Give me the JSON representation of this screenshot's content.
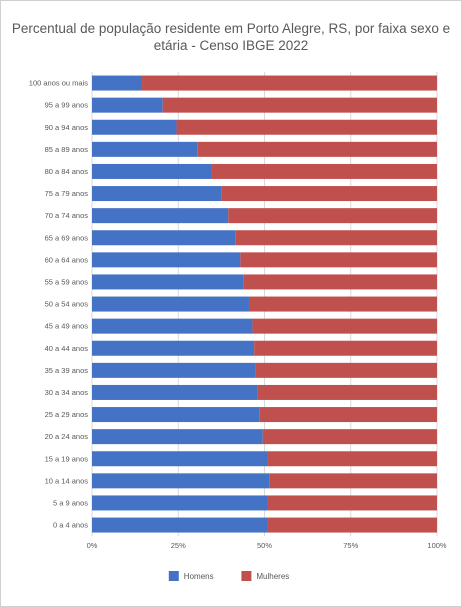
{
  "chart_data": {
    "type": "bar",
    "orientation": "horizontal",
    "stacked": "percent",
    "title_lines": [
      "Percentual de população residente em Porto Alegre, RS, por faixa sexo e",
      "etária - Censo IBGE 2022"
    ],
    "categories": [
      "100 anos ou mais",
      "95 a 99 anos",
      "90 a 94 anos",
      "85 a 89 anos",
      "80 a 84 anos",
      "75 a 79 anos",
      "70 a 74 anos",
      "65 a 69 anos",
      "60 a 64 anos",
      "55 a 59 anos",
      "50 a 54 anos",
      "45 a 49 anos",
      "40 a 44 anos",
      "35 a 39 anos",
      "30 a 34 anos",
      "25 a 29 anos",
      "20 a 24 anos",
      "15 a 19 anos",
      "10 a 14 anos",
      "5 a 9 anos",
      "0 a 4 anos"
    ],
    "series": [
      {
        "name": "Homens",
        "color": "#4472c4",
        "values": [
          14.5,
          20.5,
          24.5,
          30.5,
          34.5,
          37.5,
          39.5,
          41.5,
          43.0,
          44.0,
          45.5,
          46.5,
          47.0,
          47.5,
          48.0,
          48.5,
          49.5,
          51.0,
          51.5,
          51.0,
          51.0
        ]
      },
      {
        "name": "Mulheres",
        "color": "#c0504d",
        "values": [
          85.5,
          79.5,
          75.5,
          69.5,
          65.5,
          62.5,
          60.5,
          58.5,
          57.0,
          56.0,
          54.5,
          53.5,
          53.0,
          52.5,
          52.0,
          51.5,
          50.5,
          49.0,
          48.5,
          49.0,
          49.0
        ]
      }
    ],
    "xlim": [
      0,
      100
    ],
    "x_ticks": [
      "0%",
      "25%",
      "50%",
      "75%",
      "100%"
    ],
    "grid": true,
    "legend_position": "bottom"
  }
}
